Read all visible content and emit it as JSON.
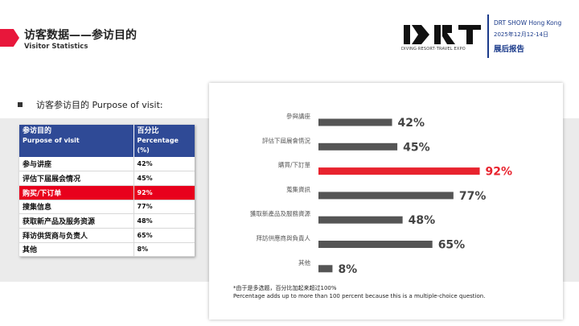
{
  "header": {
    "title_cn": "访客数据——参访目的",
    "title_en": "Visitor Statistics",
    "show_name": "DRT SHOW Hong Kong",
    "show_date": "2025年12月12-14日",
    "report_label": "展后报告",
    "logo_tagline": "DIVING·RESORT·TRAVEL EXPO",
    "logo_text": "DRT"
  },
  "section": {
    "label": "访客参访目的 Purpose of visit:"
  },
  "table": {
    "headers": [
      {
        "cn": "参访目的",
        "en": "Purpose of visit"
      },
      {
        "cn": "百分比",
        "en": "Percentage (%)"
      }
    ],
    "rows": [
      {
        "label": "参与讲座",
        "value": "42%"
      },
      {
        "label": "评估下届展会情况",
        "value": "45%"
      },
      {
        "label": "购买/下订单",
        "value": "92%"
      },
      {
        "label": "搜集信息",
        "value": "77%"
      },
      {
        "label": "获取新产品及服务资源",
        "value": "48%"
      },
      {
        "label": "拜访供货商与负责人",
        "value": "65%"
      },
      {
        "label": "其他",
        "value": "8%"
      }
    ],
    "highlight_index": 2
  },
  "colors": {
    "bar": "#555555",
    "highlight": "#e8232e",
    "header_blue": "#2f4a96",
    "accent_red": "#e8173b"
  },
  "chart_data": {
    "type": "bar",
    "orientation": "horizontal",
    "categories": [
      "參與講座",
      "評估下屆展會情況",
      "購買/下訂單",
      "蒐集資訊",
      "獲取新產品及服務資源",
      "拜訪供應商與負責人",
      "其他"
    ],
    "values": [
      42,
      45,
      92,
      77,
      48,
      65,
      8
    ],
    "value_labels": [
      "42%",
      "45%",
      "92%",
      "77%",
      "48%",
      "65%",
      "8%"
    ],
    "highlight_index": 2,
    "xlim": [
      0,
      100
    ],
    "grid": false,
    "legend": "none"
  },
  "notes": {
    "line1": "*由于是多选题，百分比加起来超过100%",
    "line2": "Percentage adds up to more than 100 percent because this is a multiple-choice question."
  }
}
